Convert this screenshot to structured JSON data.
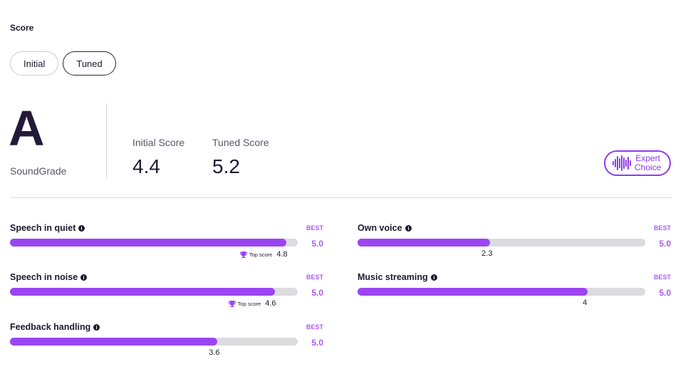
{
  "section_label": "Score",
  "toggle": {
    "initial_label": "Initial",
    "tuned_label": "Tuned",
    "active": "tuned"
  },
  "grade": {
    "letter": "A",
    "caption": "SoundGrade"
  },
  "scores": {
    "initial": {
      "label": "Initial Score",
      "value": "4.4"
    },
    "tuned": {
      "label": "Tuned Score",
      "value": "5.2"
    }
  },
  "badge": {
    "line1": "Expert",
    "line2": "Choice",
    "icon": "soundwave-icon",
    "color": "#8e3bf0"
  },
  "metrics": [
    {
      "name": "Speech in quiet",
      "best_label": "BEST",
      "best_value": "5.0",
      "value": 4.8,
      "value_label": "4.8",
      "max": 5,
      "top_score": true,
      "top_score_label": "Top score"
    },
    {
      "name": "Own voice",
      "best_label": "BEST",
      "best_value": "5.0",
      "value": 2.3,
      "value_label": "2.3",
      "max": 5,
      "top_score": false
    },
    {
      "name": "Speech in noise",
      "best_label": "BEST",
      "best_value": "5.0",
      "value": 4.6,
      "value_label": "4.6",
      "max": 5,
      "top_score": true,
      "top_score_label": "Top score"
    },
    {
      "name": "Music streaming",
      "best_label": "BEST",
      "best_value": "5.0",
      "value": 4,
      "value_label": "4",
      "max": 5,
      "top_score": false
    },
    {
      "name": "Feedback handling",
      "best_label": "BEST",
      "best_value": "5.0",
      "value": 3.6,
      "value_label": "3.6",
      "max": 5,
      "top_score": false
    }
  ],
  "colors": {
    "accent": "#9b45f2",
    "track": "#dcdcdf",
    "text": "#1e1a2e"
  }
}
